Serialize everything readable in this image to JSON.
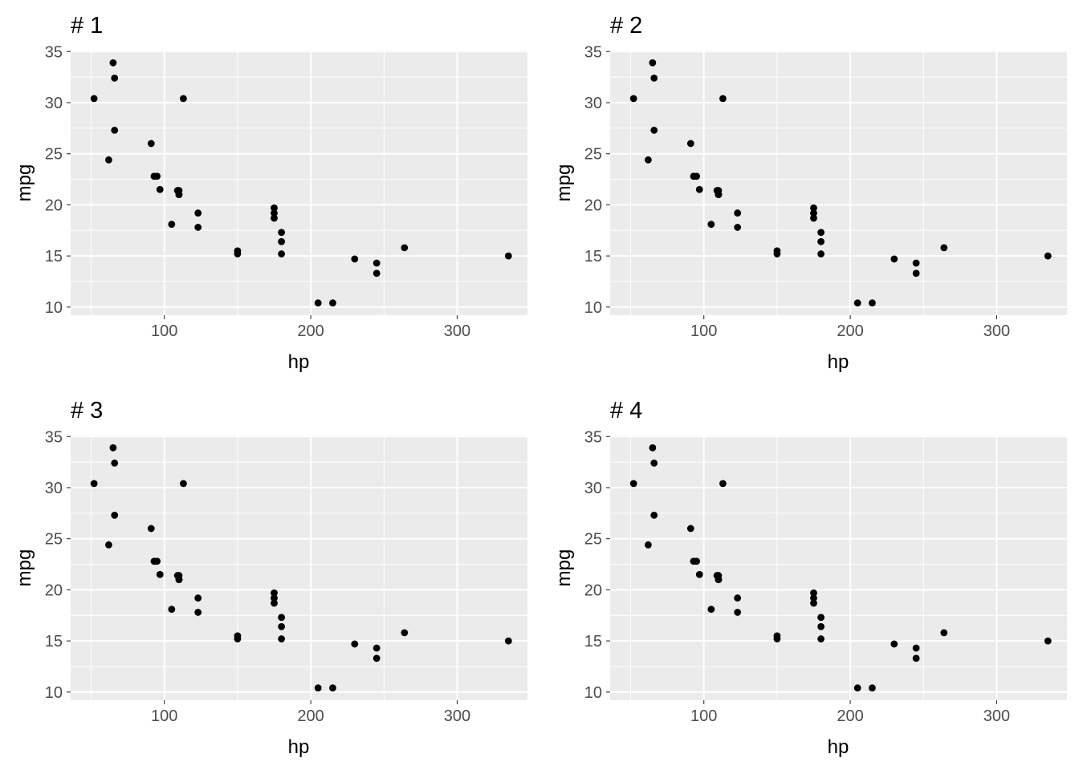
{
  "chart_data": [
    {
      "type": "scatter",
      "title": "# 1",
      "xlabel": "hp",
      "ylabel": "mpg",
      "xlim": [
        36,
        348
      ],
      "ylim": [
        9.2,
        35.1
      ],
      "xticks": [
        "100",
        "200",
        "300"
      ],
      "yticks": [
        "10",
        "15",
        "20",
        "25",
        "30",
        "35"
      ],
      "grid": true,
      "background": "#ebebeb",
      "point_color": "#000000",
      "x": [
        110,
        110,
        93,
        110,
        175,
        105,
        245,
        62,
        95,
        123,
        123,
        180,
        180,
        180,
        205,
        215,
        230,
        66,
        52,
        65,
        97,
        150,
        150,
        245,
        175,
        66,
        91,
        113,
        264,
        175,
        335,
        109
      ],
      "y": [
        21.0,
        21.0,
        22.8,
        21.4,
        18.7,
        18.1,
        14.3,
        24.4,
        22.8,
        19.2,
        17.8,
        16.4,
        17.3,
        15.2,
        10.4,
        10.4,
        14.7,
        32.4,
        30.4,
        33.9,
        21.5,
        15.5,
        15.2,
        13.3,
        19.2,
        27.3,
        26.0,
        30.4,
        15.8,
        19.7,
        15.0,
        21.4
      ]
    },
    {
      "type": "scatter",
      "title": "# 2",
      "xlabel": "hp",
      "ylabel": "mpg",
      "xlim": [
        36,
        348
      ],
      "ylim": [
        9.2,
        35.1
      ],
      "xticks": [
        "100",
        "200",
        "300"
      ],
      "yticks": [
        "10",
        "15",
        "20",
        "25",
        "30",
        "35"
      ],
      "grid": true,
      "background": "#ebebeb",
      "point_color": "#000000",
      "x": [
        110,
        110,
        93,
        110,
        175,
        105,
        245,
        62,
        95,
        123,
        123,
        180,
        180,
        180,
        205,
        215,
        230,
        66,
        52,
        65,
        97,
        150,
        150,
        245,
        175,
        66,
        91,
        113,
        264,
        175,
        335,
        109
      ],
      "y": [
        21.0,
        21.0,
        22.8,
        21.4,
        18.7,
        18.1,
        14.3,
        24.4,
        22.8,
        19.2,
        17.8,
        16.4,
        17.3,
        15.2,
        10.4,
        10.4,
        14.7,
        32.4,
        30.4,
        33.9,
        21.5,
        15.5,
        15.2,
        13.3,
        19.2,
        27.3,
        26.0,
        30.4,
        15.8,
        19.7,
        15.0,
        21.4
      ]
    },
    {
      "type": "scatter",
      "title": "# 3",
      "xlabel": "hp",
      "ylabel": "mpg",
      "xlim": [
        36,
        348
      ],
      "ylim": [
        9.2,
        35.1
      ],
      "xticks": [
        "100",
        "200",
        "300"
      ],
      "yticks": [
        "10",
        "15",
        "20",
        "25",
        "30",
        "35"
      ],
      "grid": true,
      "background": "#ebebeb",
      "point_color": "#000000",
      "x": [
        110,
        110,
        93,
        110,
        175,
        105,
        245,
        62,
        95,
        123,
        123,
        180,
        180,
        180,
        205,
        215,
        230,
        66,
        52,
        65,
        97,
        150,
        150,
        245,
        175,
        66,
        91,
        113,
        264,
        175,
        335,
        109
      ],
      "y": [
        21.0,
        21.0,
        22.8,
        21.4,
        18.7,
        18.1,
        14.3,
        24.4,
        22.8,
        19.2,
        17.8,
        16.4,
        17.3,
        15.2,
        10.4,
        10.4,
        14.7,
        32.4,
        30.4,
        33.9,
        21.5,
        15.5,
        15.2,
        13.3,
        19.2,
        27.3,
        26.0,
        30.4,
        15.8,
        19.7,
        15.0,
        21.4
      ]
    },
    {
      "type": "scatter",
      "title": "# 4",
      "xlabel": "hp",
      "ylabel": "mpg",
      "xlim": [
        36,
        348
      ],
      "ylim": [
        9.2,
        35.1
      ],
      "xticks": [
        "100",
        "200",
        "300"
      ],
      "yticks": [
        "10",
        "15",
        "20",
        "25",
        "30",
        "35"
      ],
      "grid": true,
      "background": "#ebebeb",
      "point_color": "#000000",
      "x": [
        110,
        110,
        93,
        110,
        175,
        105,
        245,
        62,
        95,
        123,
        123,
        180,
        180,
        180,
        205,
        215,
        230,
        66,
        52,
        65,
        97,
        150,
        150,
        245,
        175,
        66,
        91,
        113,
        264,
        175,
        335,
        109
      ],
      "y": [
        21.0,
        21.0,
        22.8,
        21.4,
        18.7,
        18.1,
        14.3,
        24.4,
        22.8,
        19.2,
        17.8,
        16.4,
        17.3,
        15.2,
        10.4,
        10.4,
        14.7,
        32.4,
        30.4,
        33.9,
        21.5,
        15.5,
        15.2,
        13.3,
        19.2,
        27.3,
        26.0,
        30.4,
        15.8,
        19.7,
        15.0,
        21.4
      ]
    }
  ]
}
